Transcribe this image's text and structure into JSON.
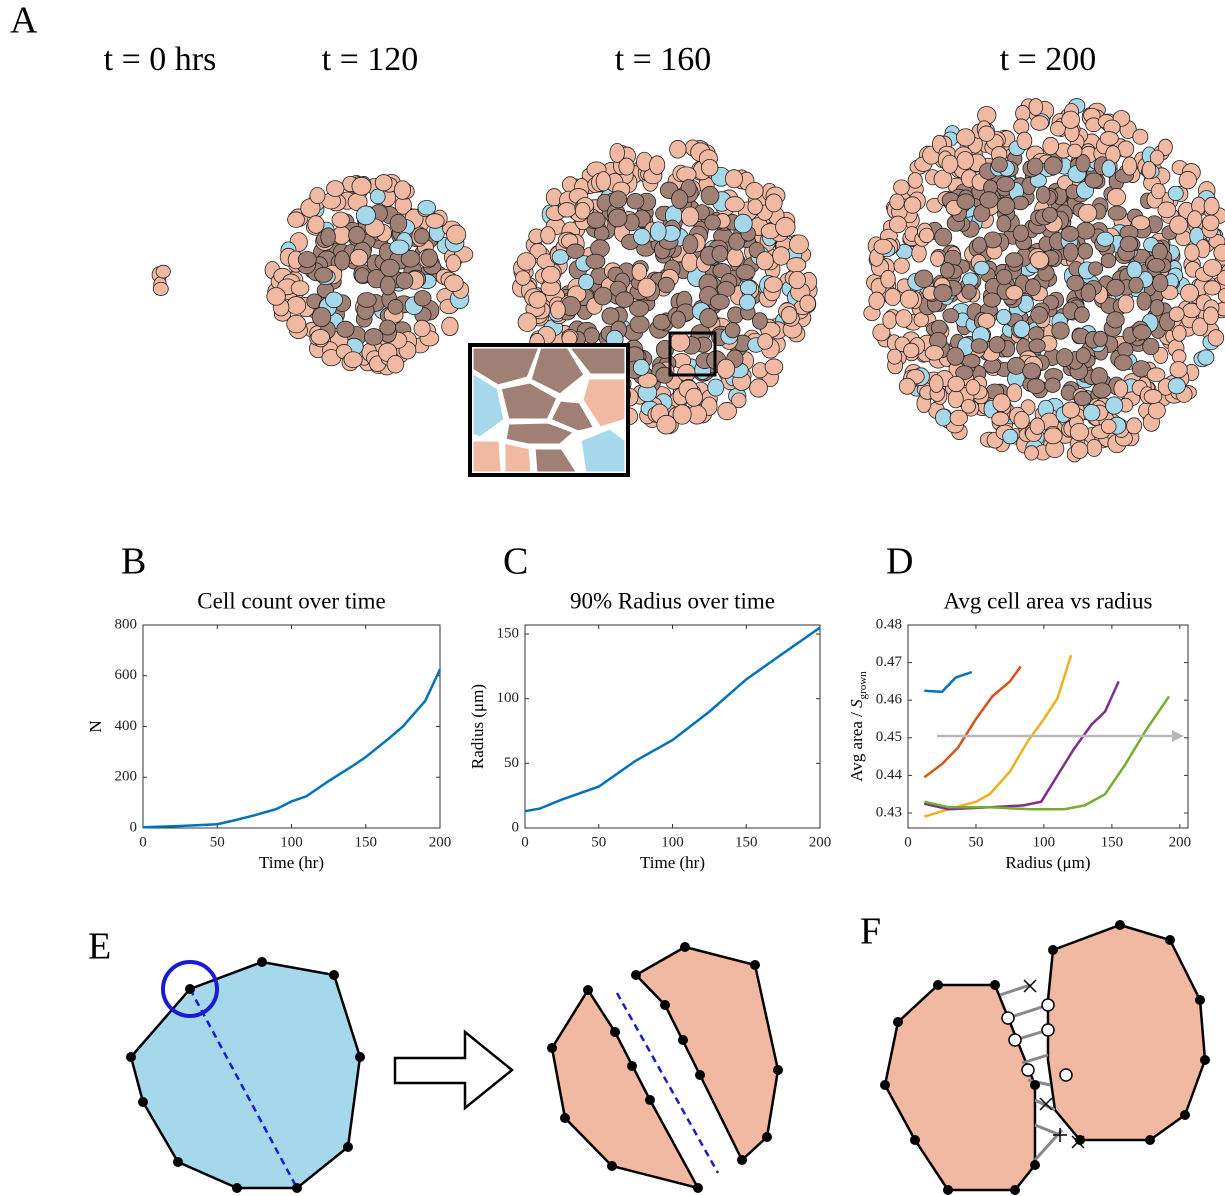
{
  "panel_a": {
    "label": "A",
    "time_labels": [
      "t = 0 hrs",
      "t = 120",
      "t = 160",
      "t = 200"
    ]
  },
  "chart_data": [
    {
      "type": "line",
      "panel_label": "B",
      "title": "Cell count over time",
      "xlabel": "Time (hr)",
      "ylabel": "N",
      "xlim": [
        0,
        200
      ],
      "ylim": [
        0,
        800
      ],
      "xticks": [
        0,
        50,
        100,
        150,
        200
      ],
      "yticks": [
        0,
        200,
        400,
        600,
        800
      ],
      "x": [
        0,
        25,
        50,
        60,
        75,
        90,
        100,
        110,
        125,
        140,
        150,
        165,
        175,
        190,
        200
      ],
      "series": [
        {
          "color": "#0072bd",
          "values": [
            3,
            8,
            15,
            28,
            50,
            75,
            105,
            125,
            185,
            240,
            280,
            350,
            400,
            500,
            625
          ]
        }
      ]
    },
    {
      "type": "line",
      "panel_label": "C",
      "title": "90% Radius over time",
      "xlabel": "Time (hr)",
      "ylabel": "Radius (μm)",
      "xlim": [
        0,
        200
      ],
      "ylim": [
        0,
        157
      ],
      "xticks": [
        0,
        50,
        100,
        150,
        200
      ],
      "yticks": [
        0,
        50,
        100,
        150
      ],
      "x": [
        0,
        10,
        25,
        50,
        75,
        100,
        125,
        150,
        175,
        200
      ],
      "series": [
        {
          "color": "#0072bd",
          "values": [
            13,
            15,
            22,
            32,
            52,
            68,
            90,
            115,
            135,
            155
          ]
        }
      ]
    },
    {
      "type": "line",
      "panel_label": "D",
      "title": "Avg cell area vs radius",
      "xlabel": "Radius (μm)",
      "ylabel": "Avg area / ",
      "ylabel_symbol": "S",
      "ylabel_subscript": "grown",
      "xlim": [
        0,
        206
      ],
      "ylim": [
        0.426,
        0.48
      ],
      "xticks": [
        0,
        50,
        100,
        150,
        200
      ],
      "yticks": [
        0.43,
        0.44,
        0.45,
        0.46,
        0.47,
        0.48
      ],
      "series": [
        {
          "color": "#333333",
          "x": [
            12,
            25,
            40
          ],
          "values": [
            0.4325,
            0.4315,
            0.4312
          ]
        },
        {
          "color": "#0072bd",
          "x": [
            12,
            25,
            35,
            47
          ],
          "values": [
            0.4625,
            0.4622,
            0.466,
            0.4675
          ]
        },
        {
          "color": "#d95319",
          "x": [
            12,
            25,
            37,
            50,
            62,
            75,
            83
          ],
          "values": [
            0.4395,
            0.443,
            0.4475,
            0.455,
            0.461,
            0.465,
            0.469
          ]
        },
        {
          "color": "#edb120",
          "x": [
            12,
            30,
            50,
            60,
            75,
            88,
            100,
            110,
            120
          ],
          "values": [
            0.429,
            0.431,
            0.433,
            0.435,
            0.441,
            0.449,
            0.455,
            0.4605,
            0.472
          ]
        },
        {
          "color": "#7e2f8e",
          "x": [
            12,
            30,
            60,
            85,
            98,
            110,
            122,
            135,
            145,
            155
          ],
          "values": [
            0.4325,
            0.431,
            0.4315,
            0.432,
            0.433,
            0.44,
            0.447,
            0.4535,
            0.457,
            0.465
          ]
        },
        {
          "color": "#77ac30",
          "x": [
            12,
            30,
            60,
            90,
            115,
            130,
            145,
            160,
            175,
            192
          ],
          "values": [
            0.433,
            0.4315,
            0.4315,
            0.431,
            0.431,
            0.432,
            0.435,
            0.443,
            0.452,
            0.461
          ]
        }
      ]
    }
  ],
  "panel_e": {
    "label": "E"
  },
  "panel_f": {
    "label": "F"
  }
}
